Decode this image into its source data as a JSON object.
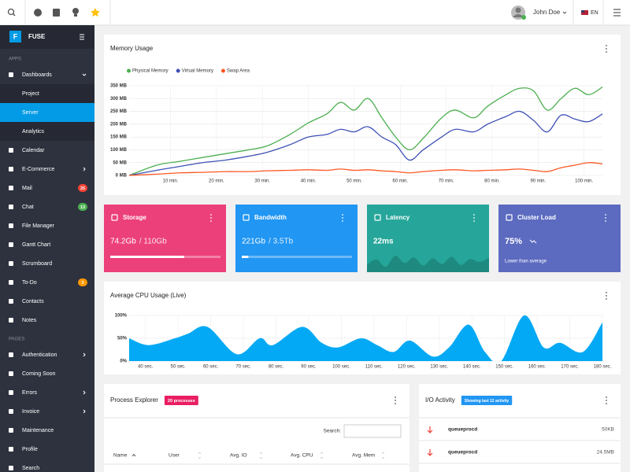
{
  "topbar": {
    "user": "John Doe",
    "language": "EN"
  },
  "sidebar": {
    "brand": "FUSE",
    "sections": [
      {
        "title": "APPS",
        "items": [
          {
            "label": "Dashboards",
            "children": [
              {
                "label": "Project"
              },
              {
                "label": "Server",
                "active": true
              },
              {
                "label": "Analytics"
              }
            ]
          },
          {
            "label": "Calendar"
          },
          {
            "label": "E-Commerce",
            "expandable": true
          },
          {
            "label": "Mail",
            "badge": 25,
            "badge_color": "#f44336"
          },
          {
            "label": "Chat",
            "badge": 13,
            "badge_color": "#4caf50"
          },
          {
            "label": "File Manager"
          },
          {
            "label": "Gantt Chart"
          },
          {
            "label": "Scrumboard"
          },
          {
            "label": "To-Do",
            "badge": 3,
            "badge_color": "#ff9800"
          },
          {
            "label": "Contacts"
          },
          {
            "label": "Notes"
          }
        ]
      },
      {
        "title": "PAGES",
        "items": [
          {
            "label": "Authentication",
            "expandable": true
          },
          {
            "label": "Coming Soon"
          },
          {
            "label": "Errors",
            "expandable": true
          },
          {
            "label": "Invoice",
            "expandable": true
          },
          {
            "label": "Maintenance"
          },
          {
            "label": "Profile"
          },
          {
            "label": "Search"
          }
        ]
      }
    ]
  },
  "chart_data": [
    {
      "type": "line",
      "title": "Memory Usage",
      "legend": "top-left",
      "grid": true,
      "x": [
        1,
        7,
        12,
        17,
        22,
        27,
        31,
        36,
        40,
        44,
        47,
        50,
        53,
        56,
        59,
        62,
        65,
        69,
        72,
        76,
        79,
        83,
        86,
        89,
        92,
        95,
        98,
        101,
        104
      ],
      "xlim": [
        1,
        104
      ],
      "xticks": [
        {
          "value": 10,
          "label": "10 min."
        },
        {
          "value": 20,
          "label": "20 min."
        },
        {
          "value": 30,
          "label": "30 min."
        },
        {
          "value": 40,
          "label": "40 min."
        },
        {
          "value": 50,
          "label": "50 min."
        },
        {
          "value": 60,
          "label": "60 min."
        },
        {
          "value": 70,
          "label": "70 min."
        },
        {
          "value": 80,
          "label": "80 min."
        },
        {
          "value": 90,
          "label": "90 min."
        },
        {
          "value": 100,
          "label": "100 min."
        }
      ],
      "ylim": [
        0,
        350
      ],
      "yticks": [
        {
          "value": 0,
          "label": "0 MB"
        },
        {
          "value": 50,
          "label": "50 MB"
        },
        {
          "value": 100,
          "label": "100 MB"
        },
        {
          "value": 150,
          "label": "150 MB"
        },
        {
          "value": 200,
          "label": "200 MB"
        },
        {
          "value": 250,
          "label": "250 MB"
        },
        {
          "value": 300,
          "label": "300 MB"
        },
        {
          "value": 350,
          "label": "350 MB"
        }
      ],
      "series": [
        {
          "name": "Physical Memory",
          "color": "#4caf50",
          "values": [
            0,
            40,
            55,
            70,
            85,
            100,
            115,
            160,
            205,
            240,
            285,
            255,
            300,
            225,
            150,
            100,
            145,
            225,
            255,
            225,
            270,
            315,
            340,
            330,
            255,
            300,
            340,
            315,
            345
          ]
        },
        {
          "name": "Virtual Memory",
          "color": "#3f51b5",
          "values": [
            0,
            20,
            35,
            50,
            60,
            75,
            90,
            120,
            150,
            160,
            180,
            170,
            190,
            150,
            120,
            60,
            100,
            150,
            180,
            170,
            200,
            230,
            250,
            215,
            170,
            235,
            220,
            210,
            240
          ]
        },
        {
          "name": "Swap Area",
          "color": "#ff5722",
          "values": [
            0,
            5,
            10,
            12,
            15,
            15,
            18,
            20,
            22,
            20,
            25,
            20,
            22,
            18,
            15,
            10,
            15,
            20,
            22,
            18,
            20,
            22,
            25,
            20,
            15,
            30,
            40,
            50,
            45
          ]
        }
      ]
    },
    {
      "type": "area",
      "title": "Average CPU Usage (Live)",
      "grid": true,
      "color": "#03a9f4",
      "x": [
        35,
        41,
        49,
        53,
        59,
        68,
        75,
        79,
        88,
        94,
        99,
        106,
        111,
        116,
        121,
        128,
        133,
        139,
        144,
        149,
        156,
        162,
        167,
        174,
        180
      ],
      "values": [
        50,
        35,
        50,
        60,
        75,
        15,
        50,
        35,
        75,
        40,
        30,
        50,
        35,
        20,
        45,
        10,
        30,
        80,
        20,
        0,
        100,
        30,
        40,
        20,
        85
      ],
      "xlim": [
        35,
        180
      ],
      "xticks": [
        {
          "value": 40,
          "label": "40 sec."
        },
        {
          "value": 50,
          "label": "50 sec."
        },
        {
          "value": 60,
          "label": "60 sec."
        },
        {
          "value": 70,
          "label": "70 sec."
        },
        {
          "value": 80,
          "label": "80 sec."
        },
        {
          "value": 90,
          "label": "90 sec."
        },
        {
          "value": 100,
          "label": "100 sec."
        },
        {
          "value": 110,
          "label": "110 sec."
        },
        {
          "value": 120,
          "label": "120 sec."
        },
        {
          "value": 130,
          "label": "130 sec."
        },
        {
          "value": 140,
          "label": "140 sec."
        },
        {
          "value": 150,
          "label": "150 sec."
        },
        {
          "value": 160,
          "label": "160 sec."
        },
        {
          "value": 170,
          "label": "170 sec."
        },
        {
          "value": 180,
          "label": "180 sec."
        }
      ],
      "ylim": [
        0,
        100
      ],
      "yticks": [
        {
          "value": 0,
          "label": "0%"
        },
        {
          "value": 50,
          "label": "50%"
        },
        {
          "value": 100,
          "label": "100%"
        }
      ]
    },
    {
      "type": "area",
      "color": "#1e8a7f",
      "ylim": [
        0,
        60
      ],
      "values": [
        20,
        35,
        15,
        45,
        25,
        40,
        18,
        38,
        22,
        42,
        20,
        36,
        28,
        40
      ]
    }
  ],
  "widgets": [
    {
      "title": "Storage",
      "value": "74.2Gb",
      "total": "/ 110Gb",
      "progress": 67,
      "color": "#ec407a"
    },
    {
      "title": "Bandwidth",
      "value": "221Gb",
      "total": "/ 3.5Tb",
      "progress": 6,
      "color": "#2196f3"
    },
    {
      "title": "Latency",
      "value": "22ms",
      "color": "#26a69a"
    },
    {
      "title": "Cluster Load",
      "value": "75%",
      "note": "Lower than average",
      "color": "#5c6bc0"
    }
  ],
  "process_explorer": {
    "title": "Process Explorer",
    "badge": "20 processes",
    "search_label": "Search:",
    "columns": [
      "Name",
      "User",
      "Avg. IO",
      "Avg. CPU",
      "Avg. Mem"
    ]
  },
  "io_activity": {
    "title": "I/O Activity",
    "badge": "Showing last 12 activity",
    "rows": [
      {
        "name": "queueprocd",
        "size": "50KB"
      },
      {
        "name": "queueprocd",
        "size": "24.5MB"
      }
    ]
  }
}
